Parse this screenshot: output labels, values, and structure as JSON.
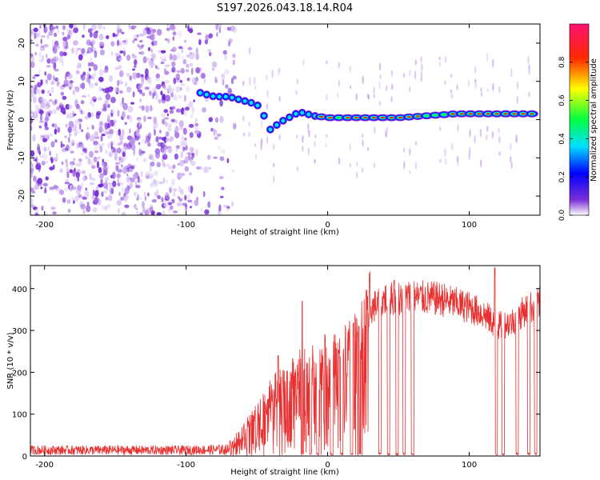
{
  "title": "S197.2026.043.18.14.R04",
  "chart_data": [
    {
      "type": "heatmap",
      "name": "spectrogram",
      "xlabel": "Height of straight line (km)",
      "ylabel": "Frequency (Hz)",
      "xlim": [
        -210,
        150
      ],
      "ylim": [
        -25,
        25
      ],
      "xticks": [
        -200,
        -100,
        0,
        100
      ],
      "xtick_labels": [
        "-200",
        "-100",
        "0",
        "100"
      ],
      "yticks": [
        -20,
        -10,
        0,
        10,
        20
      ],
      "ytick_labels": [
        "-20",
        "-10",
        "0",
        "10",
        "20"
      ],
      "colorbar": {
        "label": "Normalized spectral amplitude",
        "range": [
          0,
          1
        ],
        "ticks": [
          0.0,
          0.2,
          0.4,
          0.6,
          0.8
        ],
        "tick_labels": [
          "0.0",
          "0.2",
          "0.4",
          "0.6",
          "0.8"
        ],
        "colors": [
          "#ffffff",
          "#7b2fd6",
          "#0000ff",
          "#00e0ff",
          "#00ff40",
          "#ffff00",
          "#ff2a00",
          "#ff1070"
        ]
      },
      "noise_region_x": [
        -210,
        -65
      ],
      "signal_track": [
        {
          "x": -90,
          "freq": 7
        },
        {
          "x": -80,
          "freq": 6
        },
        {
          "x": -70,
          "freq": 6
        },
        {
          "x": -60,
          "freq": 5
        },
        {
          "x": -50,
          "freq": 4
        },
        {
          "x": -45,
          "freq": 1
        },
        {
          "x": -40,
          "freq": -3
        },
        {
          "x": -35,
          "freq": -1
        },
        {
          "x": -30,
          "freq": 0
        },
        {
          "x": -20,
          "freq": 2
        },
        {
          "x": -10,
          "freq": 1
        },
        {
          "x": 0,
          "freq": 0.5
        },
        {
          "x": 50,
          "freq": 0.5
        },
        {
          "x": 90,
          "freq": 1.5
        },
        {
          "x": 150,
          "freq": 1.5
        }
      ]
    },
    {
      "type": "line",
      "name": "snr",
      "xlabel": "Height of straight line (km)",
      "ylabel": "SNR (10 * v/v)",
      "xlim": [
        -210,
        150
      ],
      "ylim": [
        0,
        455
      ],
      "xticks": [
        -200,
        -100,
        0,
        100
      ],
      "xtick_labels": [
        "-200",
        "-100",
        "0",
        "100"
      ],
      "yticks": [
        0,
        100,
        200,
        300,
        400
      ],
      "ytick_labels": [
        "0",
        "100",
        "200",
        "300",
        "400"
      ],
      "color": "#e83030",
      "envelope": [
        {
          "x": -210,
          "y": 22
        },
        {
          "x": -150,
          "y": 22
        },
        {
          "x": -100,
          "y": 22
        },
        {
          "x": -70,
          "y": 25
        },
        {
          "x": -60,
          "y": 60
        },
        {
          "x": -50,
          "y": 100
        },
        {
          "x": -40,
          "y": 150
        },
        {
          "x": -30,
          "y": 170
        },
        {
          "x": -20,
          "y": 200
        },
        {
          "x": -10,
          "y": 210
        },
        {
          "x": 0,
          "y": 220
        },
        {
          "x": 10,
          "y": 240
        },
        {
          "x": 20,
          "y": 270
        },
        {
          "x": 30,
          "y": 350
        },
        {
          "x": 40,
          "y": 375
        },
        {
          "x": 60,
          "y": 380
        },
        {
          "x": 80,
          "y": 375
        },
        {
          "x": 100,
          "y": 355
        },
        {
          "x": 110,
          "y": 340
        },
        {
          "x": 120,
          "y": 310
        },
        {
          "x": 130,
          "y": 320
        },
        {
          "x": 140,
          "y": 350
        },
        {
          "x": 150,
          "y": 365
        }
      ],
      "dropouts_x": [
        -18,
        -12,
        -7,
        3,
        10,
        17,
        22,
        37,
        43,
        49,
        54,
        60,
        119,
        124,
        134,
        142,
        147
      ],
      "spikes": [
        {
          "x": -35,
          "y": 240
        },
        {
          "x": -18,
          "y": 370
        },
        {
          "x": -2,
          "y": 290
        },
        {
          "x": 22,
          "y": 310
        },
        {
          "x": 47,
          "y": 420
        },
        {
          "x": 118,
          "y": 450
        }
      ]
    }
  ]
}
